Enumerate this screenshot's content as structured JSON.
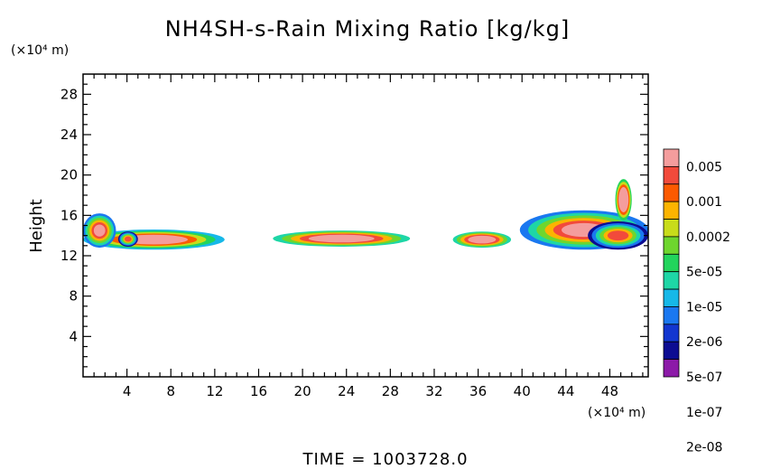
{
  "chart_data": {
    "type": "heatmap",
    "title": "NH4SH-s-Rain Mixing Ratio [kg/kg]",
    "ylabel": "Height",
    "xlabel": "",
    "y_unit": "(×10⁴ m)",
    "x_unit": "(×10⁴ m)",
    "xlim": [
      0,
      51.5
    ],
    "ylim": [
      0,
      30
    ],
    "xticks": [
      4,
      8,
      12,
      16,
      20,
      24,
      28,
      32,
      36,
      40,
      44,
      48
    ],
    "yticks": [
      4,
      8,
      12,
      16,
      20,
      24,
      28
    ],
    "legend": {
      "placement": "right",
      "labels": [
        "0.005",
        "0.001",
        "0.0002",
        "5e-05",
        "1e-05",
        "2e-06",
        "5e-07",
        "1e-07",
        "2e-08"
      ],
      "colors": [
        "#f49d9d",
        "#f24a3b",
        "#fc5a00",
        "#fcb400",
        "#c8dc1a",
        "#6ed62e",
        "#22d45c",
        "#1ed6a6",
        "#16b8e8",
        "#1a78f0",
        "#1236d0",
        "#0c0c92",
        "#8c1aa8"
      ]
    },
    "cloud_blobs": [
      {
        "x0": 0,
        "x1": 12.9,
        "y0": 12.6,
        "y1": 14.6,
        "level": 4
      },
      {
        "x0": 0,
        "x1": 3.0,
        "y0": 12.8,
        "y1": 16.2,
        "level": 3
      },
      {
        "x0": 3.2,
        "x1": 5.0,
        "y0": 12.9,
        "y1": 14.4,
        "level": 1
      },
      {
        "x0": 17.3,
        "x1": 29.8,
        "y0": 12.9,
        "y1": 14.5,
        "level": 5
      },
      {
        "x0": 33.7,
        "x1": 39.0,
        "y0": 12.8,
        "y1": 14.4,
        "level": 5
      },
      {
        "x0": 39.8,
        "x1": 51.5,
        "y0": 12.6,
        "y1": 16.5,
        "level": 3
      },
      {
        "x0": 46.0,
        "x1": 51.5,
        "y0": 12.6,
        "y1": 15.4,
        "level": 1
      },
      {
        "x0": 48.5,
        "x1": 50.0,
        "y0": 15.5,
        "y1": 19.6,
        "level": 6
      }
    ]
  },
  "time_label": "TIME =  1003728.0"
}
